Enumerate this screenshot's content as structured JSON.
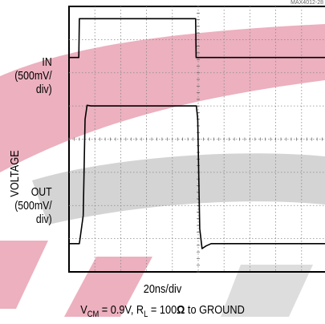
{
  "figure_id": "MAX4012-28",
  "y_label": "VOLTAGE",
  "x_label": "20ns/div",
  "conditions": {
    "vcm_prefix": "V",
    "vcm_sub": "CM",
    "vcm_value": " = 0.9V, R",
    "rl_sub": "L",
    "rl_value": " = 100",
    "ohm": "Ω",
    "tail": " to GROUND"
  },
  "traces": [
    {
      "name_line1": "IN",
      "name_line2": "(500mV/",
      "name_line3": "div)"
    },
    {
      "name_line1": "OUT",
      "name_line2": "(500mV/",
      "name_line3": "div)"
    }
  ],
  "colors": {
    "watermark_red": "#e9a2b4",
    "watermark_gray": "#c9c9c9",
    "trace": "#000000",
    "grid": "#888888"
  },
  "chart_data": {
    "type": "line",
    "title": "",
    "xlabel": "20ns/div",
    "ylabel": "VOLTAGE",
    "x_units": "divisions",
    "y_units": "divisions",
    "xlim": [
      0,
      10
    ],
    "ylim": [
      0,
      8
    ],
    "grid": true,
    "series": [
      {
        "name": "IN",
        "x": [
          0,
          0.38,
          0.4,
          4.9,
          4.92,
          10
        ],
        "y": [
          6.46,
          6.46,
          7.63,
          7.63,
          6.46,
          6.46
        ]
      },
      {
        "name": "OUT",
        "x": [
          0,
          0.4,
          0.55,
          0.62,
          0.7,
          0.85,
          4.93,
          4.98,
          5.06,
          5.15,
          5.3,
          5.5,
          10
        ],
        "y": [
          0.85,
          0.85,
          1.7,
          4.6,
          5.02,
          5.0,
          5.0,
          4.6,
          1.3,
          0.7,
          0.78,
          0.85,
          0.85
        ]
      }
    ]
  }
}
